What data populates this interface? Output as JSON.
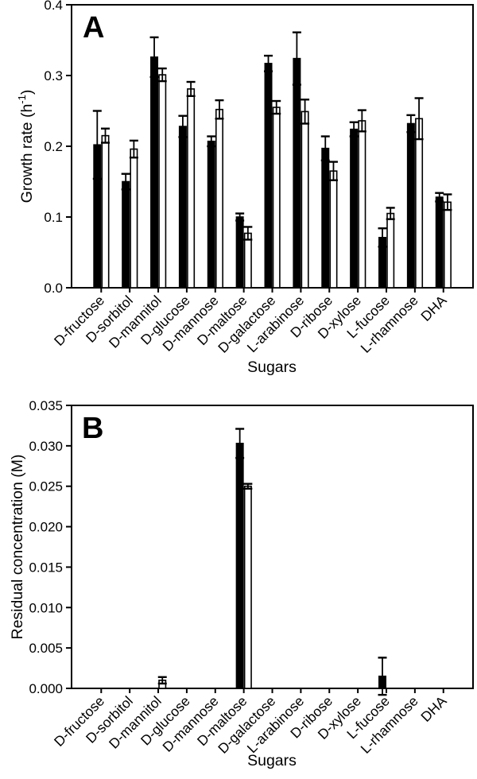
{
  "figure": {
    "background_color": "#ffffff",
    "ink_color": "#000000",
    "description_visible_text_only": true
  },
  "chart_data": [
    {
      "type": "bar",
      "panel_label": "A",
      "xlabel": "Sugars",
      "ylabel": "Growth rate (h⁻¹)",
      "ylabel_parts": {
        "pre": "Growth rate (h",
        "sup": "-1",
        "post": ")"
      },
      "ylim": [
        0,
        0.4
      ],
      "yticks": [
        0.0,
        0.1,
        0.2,
        0.3,
        0.4
      ],
      "ytick_labels": [
        "0.0",
        "0.1",
        "0.2",
        "0.3",
        "0.4"
      ],
      "grid": false,
      "legend": "none",
      "error_bars": true,
      "categories": [
        "D-fructose",
        "D-sorbitol",
        "D-mannitol",
        "D-glucose",
        "D-mannose",
        "D-maltose",
        "D-galactose",
        "L-arabinose",
        "D-ribose",
        "D-xylose",
        "L-fucose",
        "L-rhamnose",
        "DHA"
      ],
      "series": [
        {
          "name": "filled-black-bars",
          "fill": "#000000",
          "values": [
            0.202,
            0.15,
            0.326,
            0.228,
            0.207,
            0.1,
            0.317,
            0.324,
            0.197,
            0.224,
            0.071,
            0.232,
            0.128
          ],
          "errors": [
            0.048,
            0.011,
            0.028,
            0.015,
            0.007,
            0.005,
            0.011,
            0.037,
            0.017,
            0.01,
            0.013,
            0.012,
            0.006
          ]
        },
        {
          "name": "open-white-bars",
          "fill": "#ffffff",
          "values": [
            0.215,
            0.196,
            0.301,
            0.281,
            0.252,
            0.077,
            0.255,
            0.249,
            0.165,
            0.236,
            0.105,
            0.239,
            0.121
          ],
          "errors": [
            0.01,
            0.012,
            0.009,
            0.01,
            0.013,
            0.009,
            0.009,
            0.017,
            0.013,
            0.015,
            0.008,
            0.029,
            0.011
          ]
        }
      ]
    },
    {
      "type": "bar",
      "panel_label": "B",
      "xlabel": "Sugars",
      "ylabel": "Residual concentration (M)",
      "ylabel_parts": {
        "pre": "Residual concentration (M)",
        "sup": "",
        "post": ""
      },
      "ylim": [
        0,
        0.035
      ],
      "yticks": [
        0.0,
        0.005,
        0.01,
        0.015,
        0.02,
        0.025,
        0.03,
        0.035
      ],
      "ytick_labels": [
        "0.000",
        "0.005",
        "0.010",
        "0.015",
        "0.020",
        "0.025",
        "0.030",
        "0.035"
      ],
      "grid": false,
      "legend": "none",
      "error_bars": true,
      "categories": [
        "D-fructose",
        "D-sorbitol",
        "D-mannitol",
        "D-glucose",
        "D-mannose",
        "D-maltose",
        "D-galactose",
        "L-arabinose",
        "D-ribose",
        "D-xylose",
        "L-fucose",
        "L-rhamnose",
        "DHA"
      ],
      "series": [
        {
          "name": "filled-black-bars",
          "fill": "#000000",
          "values": [
            0,
            0,
            0,
            0,
            0,
            0.0303,
            0,
            0,
            0,
            0,
            0.0015,
            0,
            0
          ],
          "errors": [
            0,
            0,
            0,
            0,
            0,
            0.0018,
            0,
            0,
            0,
            0,
            0.0023,
            0,
            0
          ]
        },
        {
          "name": "open-white-bars",
          "fill": "#ffffff",
          "values": [
            0,
            0,
            0.001,
            0,
            0,
            0.025,
            0,
            0,
            0,
            0,
            0,
            0,
            0
          ],
          "errors": [
            0,
            0,
            0.0004,
            0,
            0,
            0.0003,
            0,
            0,
            0,
            0,
            0,
            0,
            0
          ]
        }
      ]
    }
  ]
}
